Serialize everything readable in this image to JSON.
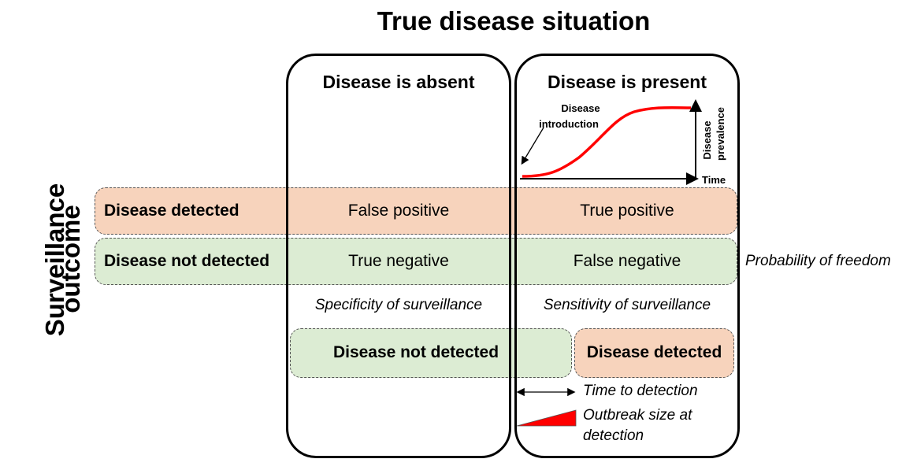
{
  "title": "True disease situation",
  "axis_label": [
    "Surveillance",
    "outcome"
  ],
  "columns": {
    "absent": "Disease is absent",
    "present": "Disease is present"
  },
  "inset": {
    "introduction": [
      "Disease",
      "introduction"
    ],
    "y_label": [
      "Disease",
      "prevalence"
    ],
    "x_label": "Time"
  },
  "rows": {
    "detected": {
      "label": "Disease detected",
      "absent_cell": "False positive",
      "present_cell": "True positive"
    },
    "not_detected": {
      "label": "Disease not detected",
      "absent_cell": "True negative",
      "present_cell": "False negative"
    }
  },
  "probability_label": "Probability of freedom",
  "specificity_label": "Specificity of surveillance",
  "sensitivity_label": "Sensitivity of surveillance",
  "outcomes": {
    "not_detected": "Disease not detected",
    "detected": "Disease detected"
  },
  "time_to_detection": "Time to detection",
  "outbreak_size": [
    "Outbreak size at",
    "detection"
  ],
  "colors": {
    "orange_band": "#f6cbb0",
    "green_band": "#d6e9cb",
    "curve": "#ff0000"
  }
}
